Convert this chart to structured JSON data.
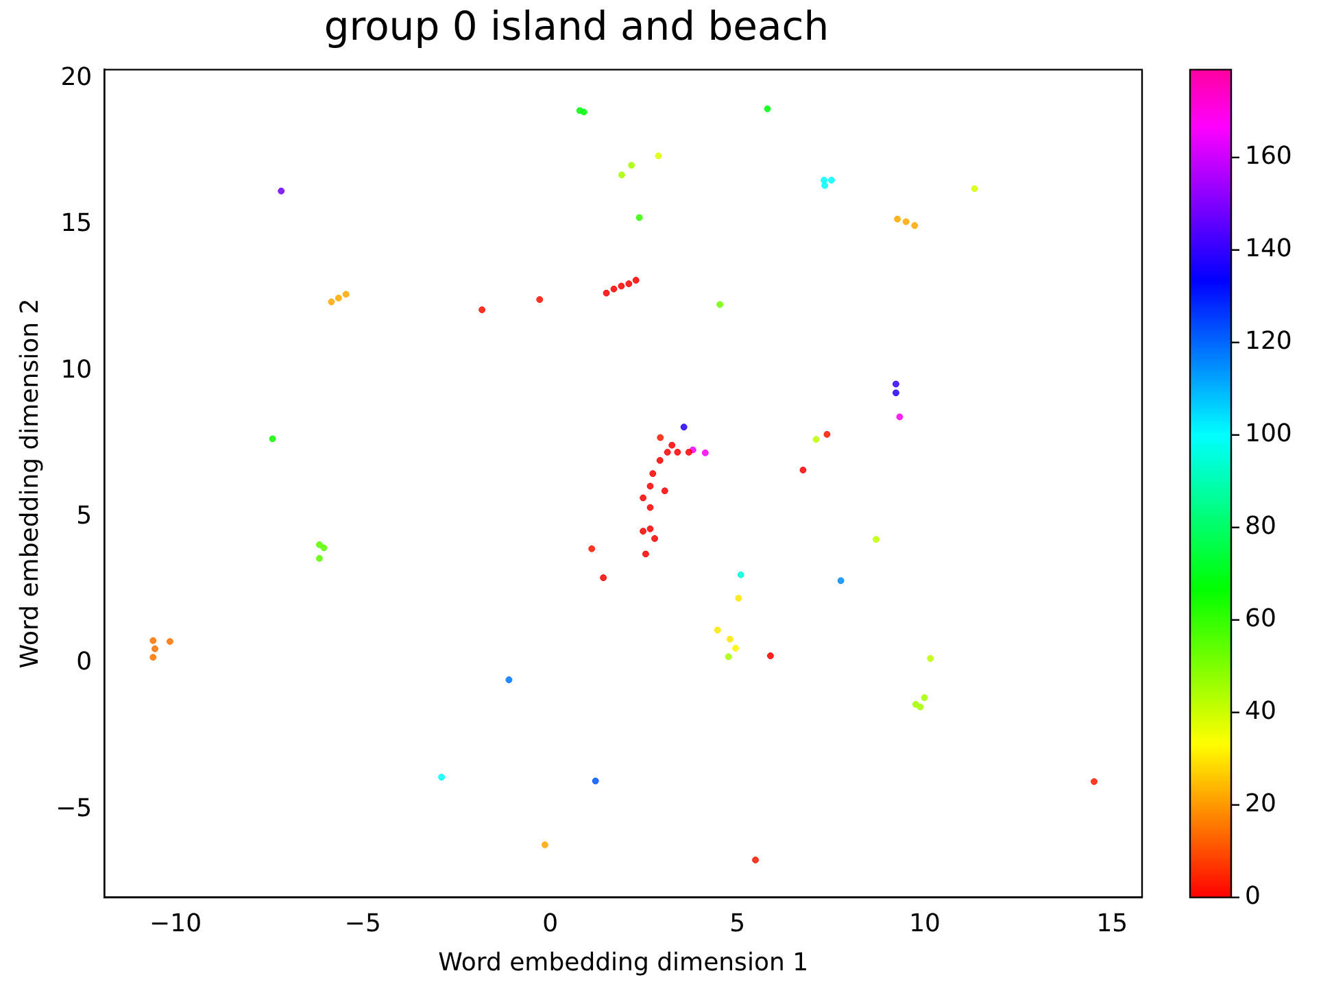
{
  "chart_data": {
    "type": "scatter",
    "title": "group 0 island and beach",
    "xlabel": "Word embedding dimension 1",
    "ylabel": "Word embedding dimension 2",
    "xlim": [
      -11.9,
      15.8
    ],
    "xticks": [
      -10,
      -5,
      0,
      5,
      10,
      15
    ],
    "ylim": [
      -8,
      20.3
    ],
    "yticks": [
      -5,
      0,
      5,
      10,
      15,
      20
    ],
    "clim": [
      0,
      179
    ],
    "cticks": [
      0,
      20,
      40,
      60,
      80,
      100,
      120,
      140,
      160
    ],
    "grid": false,
    "legend": false,
    "marker": "circle",
    "x": [
      0.79,
      0.9,
      1.91,
      2.17,
      2.89,
      -7.18,
      -5.84,
      -5.65,
      -5.45,
      -1.82,
      -0.28,
      1.5,
      1.7,
      1.9,
      2.1,
      2.29,
      -7.41,
      5.8,
      7.31,
      7.51,
      7.33,
      11.33,
      9.27,
      9.5,
      9.73,
      2.38,
      4.53,
      9.23,
      9.23,
      9.33,
      3.57,
      2.94,
      7.39,
      7.1,
      4.14,
      3.81,
      6.75,
      3.7,
      3.4,
      3.13,
      3.25,
      2.93,
      2.74,
      2.67,
      3.06,
      2.48,
      2.67,
      2.48,
      2.67,
      2.79,
      2.55,
      1.11,
      1.42,
      -6.16,
      -6.04,
      -6.16,
      -10.6,
      -10.55,
      -10.6,
      -10.15,
      -1.1,
      -2.9,
      1.21,
      -0.14,
      5.09,
      7.76,
      8.7,
      5.03,
      4.47,
      4.8,
      4.95,
      4.76,
      5.88,
      10.15,
      9.99,
      9.76,
      9.88,
      14.52,
      5.48
    ],
    "values": [
      18.9,
      18.85,
      16.7,
      17.03,
      17.35,
      16.15,
      12.36,
      12.49,
      12.62,
      12.09,
      12.44,
      12.66,
      12.8,
      12.9,
      12.98,
      13.1,
      7.68,
      18.96,
      16.52,
      16.52,
      16.34,
      16.23,
      15.19,
      15.1,
      14.97,
      15.24,
      12.27,
      9.55,
      9.25,
      8.43,
      8.08,
      7.72,
      7.83,
      7.66,
      7.2,
      7.3,
      6.61,
      7.22,
      7.22,
      7.22,
      7.46,
      6.94,
      6.49,
      6.06,
      5.9,
      5.66,
      5.33,
      4.52,
      4.6,
      4.27,
      3.74,
      3.92,
      2.93,
      4.06,
      3.95,
      3.59,
      0.78,
      0.5,
      0.21,
      0.75,
      -0.56,
      -3.89,
      -4.02,
      -6.2,
      3.03,
      2.83,
      4.24,
      2.23,
      1.14,
      0.83,
      0.52,
      0.23,
      0.26,
      0.17,
      -1.17,
      -1.4,
      -1.49,
      -4.04,
      -6.72
    ],
    "cvalues": [
      68,
      68,
      45,
      45,
      38,
      148,
      22,
      22,
      22,
      2,
      2,
      0,
      0,
      0,
      0,
      0,
      65,
      68,
      100,
      100,
      100,
      38,
      22,
      22,
      22,
      60,
      52,
      140,
      138,
      168,
      138,
      3,
      3,
      42,
      168,
      165,
      0,
      0,
      0,
      0,
      0,
      0,
      0,
      0,
      0,
      0,
      0,
      0,
      0,
      0,
      0,
      3,
      0,
      55,
      55,
      55,
      15,
      15,
      15,
      15,
      118,
      100,
      122,
      22,
      95,
      115,
      42,
      30,
      30,
      30,
      32,
      45,
      0,
      42,
      45,
      45,
      45,
      3,
      3
    ]
  }
}
